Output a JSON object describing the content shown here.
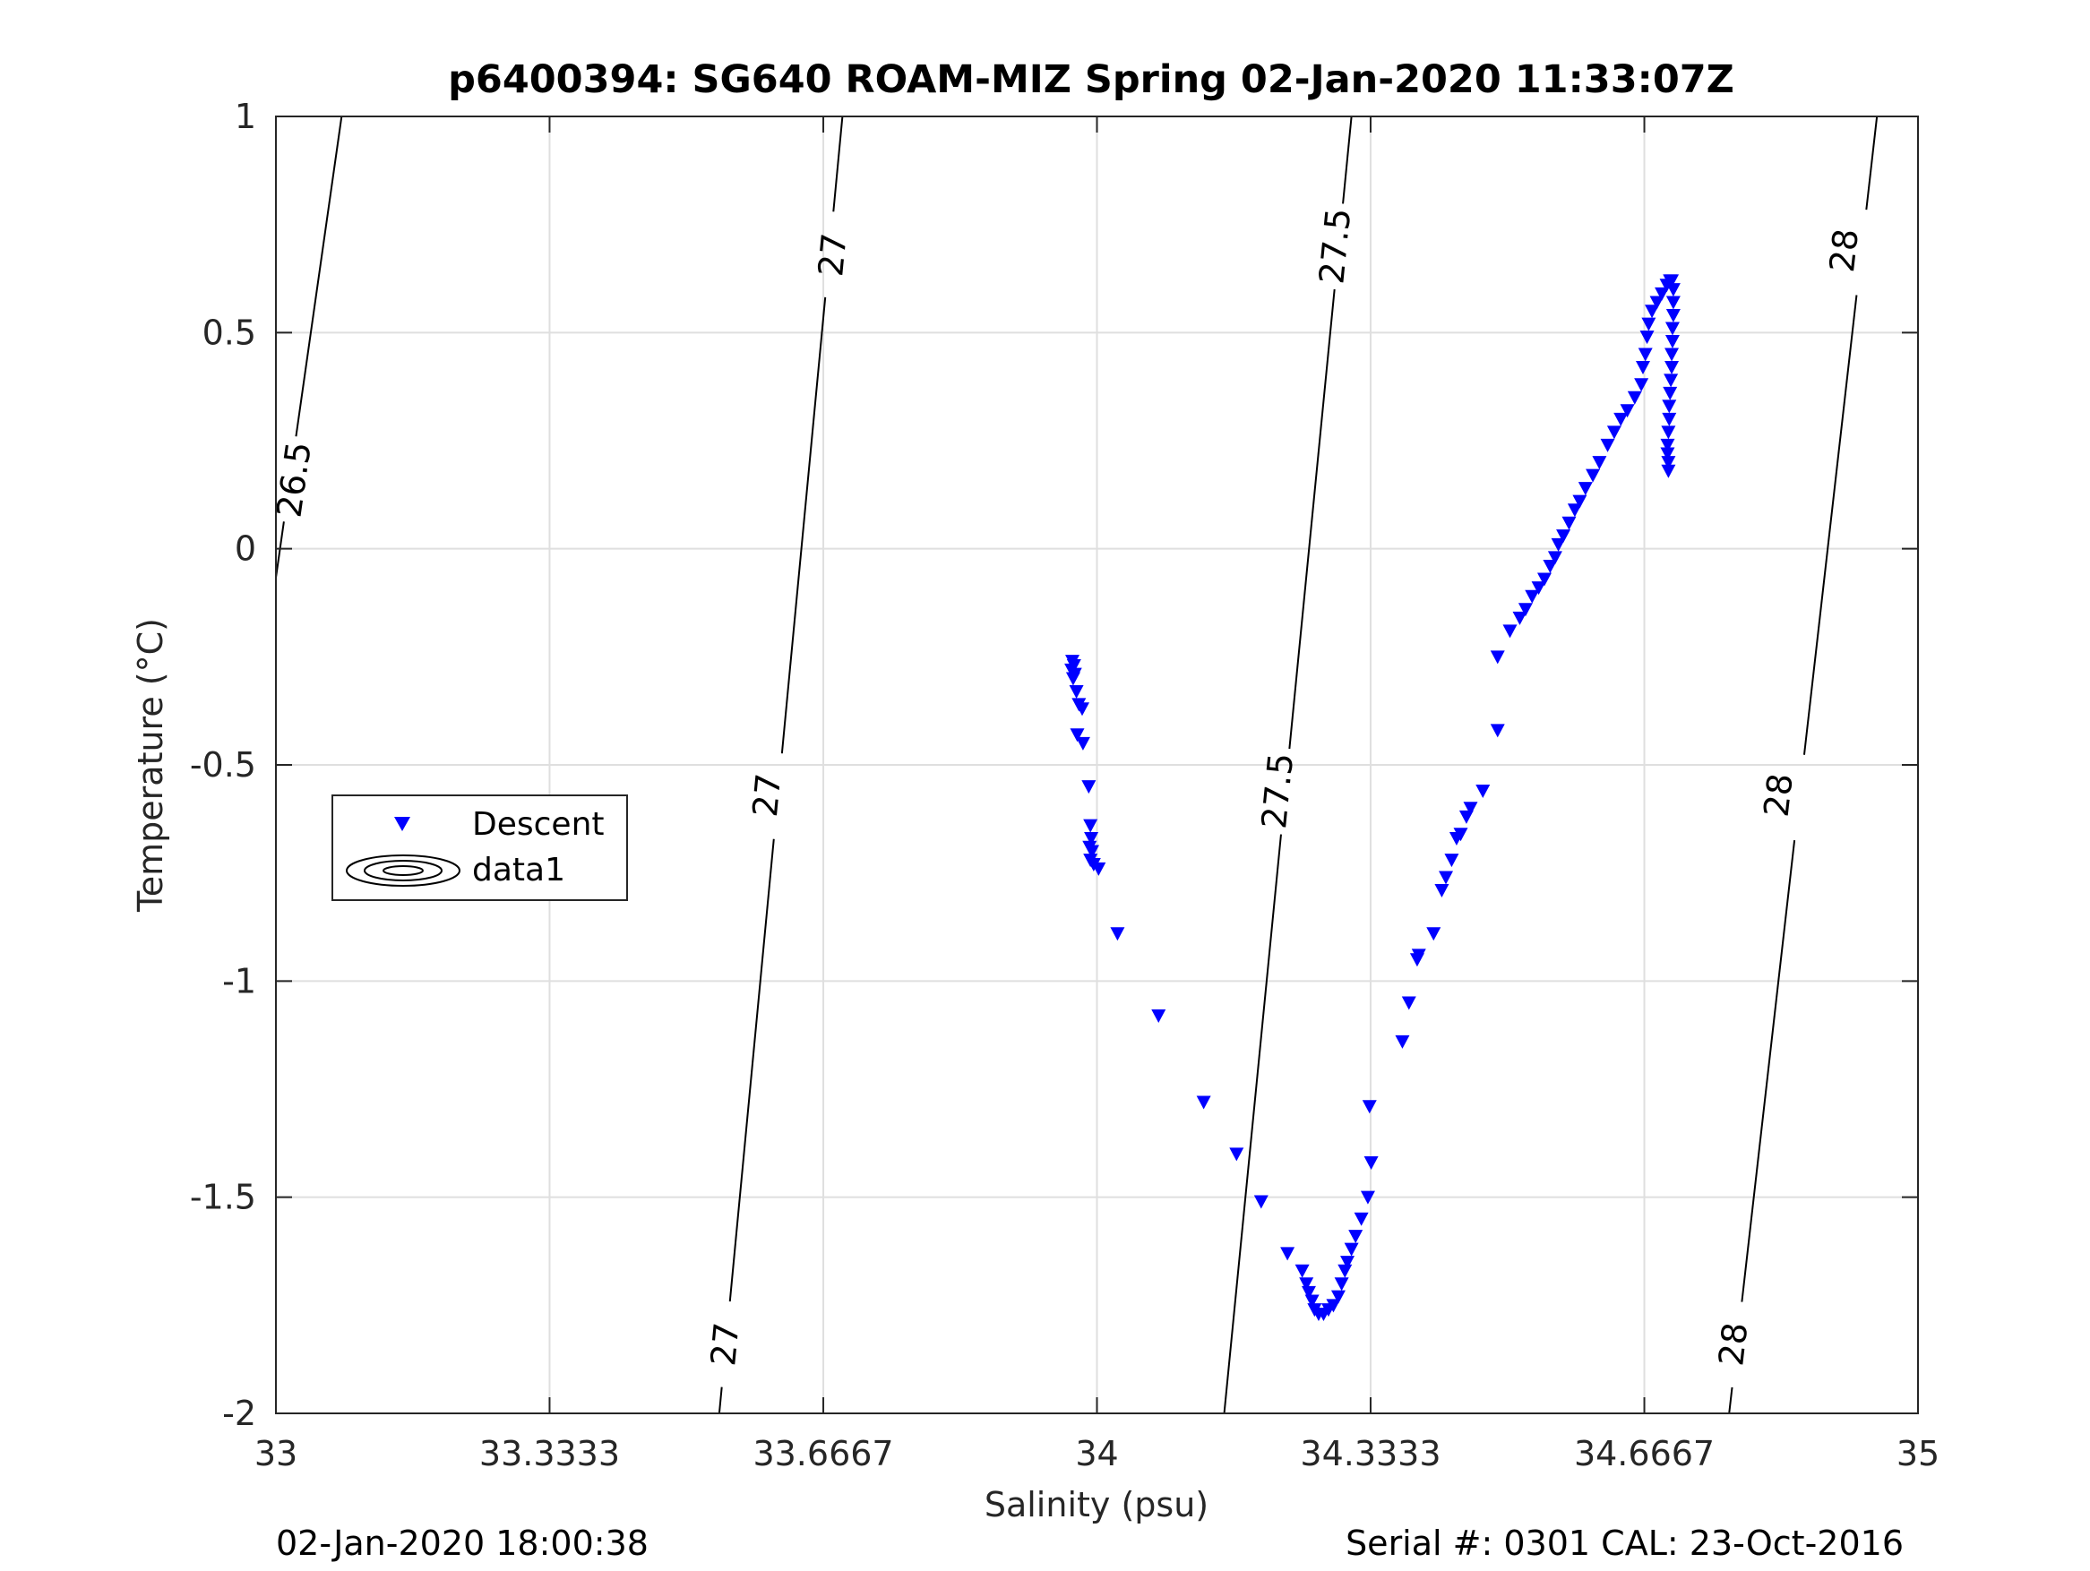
{
  "chart_data": {
    "type": "scatter",
    "title": "p6400394: SG640 ROAM-MIZ Spring 02-Jan-2020 11:33:07Z",
    "xlabel": "Salinity (psu)",
    "ylabel": "Temperature (°C)",
    "xlim": [
      33,
      35
    ],
    "ylim": [
      -2,
      1
    ],
    "grid": true,
    "x_ticks": [
      33,
      33.3333,
      33.6667,
      34,
      34.3333,
      34.6667,
      35
    ],
    "x_tick_labels": [
      "33",
      "33.3333",
      "33.6667",
      "34",
      "34.3333",
      "34.6667",
      "35"
    ],
    "y_ticks": [
      1,
      0.5,
      0,
      -0.5,
      -1,
      -1.5,
      -2
    ],
    "y_tick_labels": [
      "1",
      "0.5",
      "0",
      "-0.5",
      "-1",
      "-1.5",
      "-2"
    ],
    "legend": {
      "position": "middle-left",
      "entries": [
        "Descent",
        "data1"
      ]
    },
    "series": [
      {
        "name": "Descent",
        "marker": "triangle-down",
        "color": "#0000ff",
        "points": [
          [
            33.97,
            -0.26
          ],
          [
            33.972,
            -0.27
          ],
          [
            33.969,
            -0.28
          ],
          [
            33.973,
            -0.29
          ],
          [
            33.971,
            -0.3
          ],
          [
            33.975,
            -0.33
          ],
          [
            33.978,
            -0.36
          ],
          [
            33.982,
            -0.37
          ],
          [
            33.976,
            -0.43
          ],
          [
            33.983,
            -0.45
          ],
          [
            33.99,
            -0.55
          ],
          [
            33.992,
            -0.64
          ],
          [
            33.993,
            -0.67
          ],
          [
            33.991,
            -0.69
          ],
          [
            33.994,
            -0.7
          ],
          [
            33.992,
            -0.72
          ],
          [
            33.996,
            -0.73
          ],
          [
            34.002,
            -0.74
          ],
          [
            34.025,
            -0.89
          ],
          [
            34.075,
            -1.08
          ],
          [
            34.13,
            -1.28
          ],
          [
            34.17,
            -1.4
          ],
          [
            34.2,
            -1.51
          ],
          [
            34.232,
            -1.63
          ],
          [
            34.25,
            -1.67
          ],
          [
            34.255,
            -1.7
          ],
          [
            34.258,
            -1.72
          ],
          [
            34.262,
            -1.74
          ],
          [
            34.265,
            -1.76
          ],
          [
            34.27,
            -1.77
          ],
          [
            34.276,
            -1.77
          ],
          [
            34.282,
            -1.76
          ],
          [
            34.288,
            -1.75
          ],
          [
            34.294,
            -1.73
          ],
          [
            34.298,
            -1.7
          ],
          [
            34.302,
            -1.67
          ],
          [
            34.305,
            -1.65
          ],
          [
            34.31,
            -1.62
          ],
          [
            34.315,
            -1.59
          ],
          [
            34.322,
            -1.55
          ],
          [
            34.33,
            -1.5
          ],
          [
            34.334,
            -1.42
          ],
          [
            34.332,
            -1.29
          ],
          [
            34.372,
            -1.14
          ],
          [
            34.38,
            -1.05
          ],
          [
            34.39,
            -0.95
          ],
          [
            34.392,
            -0.94
          ],
          [
            34.41,
            -0.89
          ],
          [
            34.42,
            -0.79
          ],
          [
            34.425,
            -0.76
          ],
          [
            34.432,
            -0.72
          ],
          [
            34.438,
            -0.67
          ],
          [
            34.443,
            -0.66
          ],
          [
            34.45,
            -0.62
          ],
          [
            34.455,
            -0.6
          ],
          [
            34.47,
            -0.56
          ],
          [
            34.488,
            -0.42
          ],
          [
            34.488,
            -0.25
          ],
          [
            34.503,
            -0.19
          ],
          [
            34.515,
            -0.16
          ],
          [
            34.522,
            -0.14
          ],
          [
            34.53,
            -0.11
          ],
          [
            34.538,
            -0.09
          ],
          [
            34.545,
            -0.07
          ],
          [
            34.552,
            -0.04
          ],
          [
            34.558,
            -0.02
          ],
          [
            34.562,
            0.01
          ],
          [
            34.568,
            0.03
          ],
          [
            34.575,
            0.06
          ],
          [
            34.582,
            0.09
          ],
          [
            34.588,
            0.11
          ],
          [
            34.595,
            0.14
          ],
          [
            34.604,
            0.17
          ],
          [
            34.612,
            0.2
          ],
          [
            34.622,
            0.24
          ],
          [
            34.63,
            0.27
          ],
          [
            34.638,
            0.3
          ],
          [
            34.646,
            0.32
          ],
          [
            34.655,
            0.35
          ],
          [
            34.663,
            0.38
          ],
          [
            34.665,
            0.42
          ],
          [
            34.668,
            0.45
          ],
          [
            34.67,
            0.49
          ],
          [
            34.672,
            0.52
          ],
          [
            34.676,
            0.55
          ],
          [
            34.682,
            0.57
          ],
          [
            34.688,
            0.59
          ],
          [
            34.694,
            0.61
          ],
          [
            34.698,
            0.62
          ],
          [
            34.7,
            0.62
          ],
          [
            34.702,
            0.6
          ],
          [
            34.702,
            0.57
          ],
          [
            34.702,
            0.54
          ],
          [
            34.701,
            0.51
          ],
          [
            34.701,
            0.48
          ],
          [
            34.7,
            0.45
          ],
          [
            34.7,
            0.42
          ],
          [
            34.699,
            0.39
          ],
          [
            34.698,
            0.36
          ],
          [
            34.697,
            0.33
          ],
          [
            34.697,
            0.3
          ],
          [
            34.696,
            0.27
          ],
          [
            34.695,
            0.24
          ],
          [
            34.695,
            0.22
          ],
          [
            34.696,
            0.2
          ],
          [
            34.696,
            0.18
          ]
        ]
      },
      {
        "name": "data1",
        "type": "contour",
        "color": "#000000",
        "levels": [
          {
            "value": "26.5",
            "line": [
              [
                32.99,
                -0.2
              ],
              [
                33.08,
                1.0
              ]
            ],
            "labels": [
              [
                33.022,
                0.16
              ]
            ]
          },
          {
            "value": "27",
            "line": [
              [
                33.54,
                -2.0
              ],
              [
                33.69,
                1.0
              ]
            ],
            "labels": [
              [
                33.547,
                -1.84
              ],
              [
                33.598,
                -0.57
              ],
              [
                33.678,
                0.68
              ]
            ]
          },
          {
            "value": "27.5",
            "line": [
              [
                34.155,
                -2.0
              ],
              [
                34.31,
                1.0
              ]
            ],
            "labels": [
              [
                34.22,
                -0.56
              ],
              [
                34.29,
                0.7
              ]
            ]
          },
          {
            "value": "28",
            "line": [
              [
                34.77,
                -2.0
              ],
              [
                34.95,
                1.0
              ]
            ],
            "labels": [
              [
                34.775,
                -1.84
              ],
              [
                34.83,
                -0.57
              ],
              [
                34.91,
                0.69
              ]
            ]
          }
        ]
      }
    ]
  },
  "footer": {
    "left": "02-Jan-2020 18:00:38",
    "right": "Serial #: 0301  CAL: 23-Oct-2016"
  }
}
